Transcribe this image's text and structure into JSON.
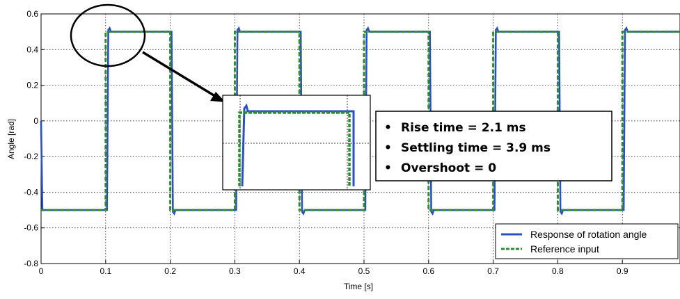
{
  "chart_data": {
    "type": "line",
    "xlabel": "Time [s]",
    "ylabel": "Angle [rad]",
    "xlim": [
      0,
      1.0
    ],
    "ylim": [
      -0.8,
      0.6
    ],
    "x_ticks": [
      "0",
      "0.1",
      "0.2",
      "0.3",
      "0.4",
      "0.5",
      "0.6",
      "0.7",
      "0.8",
      "0.9"
    ],
    "y_ticks": [
      "0.6",
      "0.4",
      "0.2",
      "0",
      "-0.2",
      "-0.4",
      "-0.6",
      "-0.8"
    ],
    "grid": true,
    "legend_position": "bottom-right",
    "series": [
      {
        "name": "Response of rotation angle",
        "color": "#2a52be",
        "style": "solid",
        "x": [
          0,
          0.002,
          0.0021,
          0.1021,
          0.1041,
          0.1061,
          0.1081,
          0.2021,
          0.2041,
          0.2061,
          0.2081,
          0.3021,
          0.3041,
          0.3061,
          0.3081,
          0.4021,
          0.4041,
          0.4061,
          0.4081,
          0.5021,
          0.5041,
          0.5061,
          0.5081,
          0.6021,
          0.6041,
          0.6061,
          0.6081,
          0.7021,
          0.7041,
          0.7061,
          0.7081,
          0.8021,
          0.8041,
          0.8061,
          0.8081,
          0.9021,
          0.9041,
          0.9061,
          0.9081,
          1.0
        ],
        "y": [
          0,
          -0.5,
          -0.5,
          -0.5,
          0.51,
          0.52,
          0.5,
          0.5,
          -0.51,
          -0.52,
          -0.5,
          -0.5,
          0.51,
          0.52,
          0.5,
          0.5,
          -0.51,
          -0.52,
          -0.5,
          -0.5,
          0.51,
          0.52,
          0.5,
          0.5,
          -0.51,
          -0.52,
          -0.5,
          -0.5,
          0.51,
          0.52,
          0.5,
          0.5,
          -0.51,
          -0.52,
          -0.5,
          -0.5,
          0.51,
          0.52,
          0.5,
          0.5
        ]
      },
      {
        "name": "Reference input",
        "color": "#2e8b2e",
        "style": "dashed",
        "x": [
          0,
          0.1,
          0.1,
          0.2,
          0.2,
          0.3,
          0.3,
          0.4,
          0.4,
          0.5,
          0.5,
          0.6,
          0.6,
          0.7,
          0.7,
          0.8,
          0.8,
          0.9,
          0.9,
          1.0
        ],
        "y": [
          -0.5,
          -0.5,
          0.5,
          0.5,
          -0.5,
          -0.5,
          0.5,
          0.5,
          -0.5,
          -0.5,
          0.5,
          0.5,
          -0.5,
          -0.5,
          0.5,
          0.5,
          -0.5,
          -0.5,
          0.5,
          0.5
        ]
      }
    ],
    "annotations": [
      "Rise time = 2.1 ms",
      "Settling time = 3.9 ms",
      "Overshoot = 0"
    ]
  }
}
